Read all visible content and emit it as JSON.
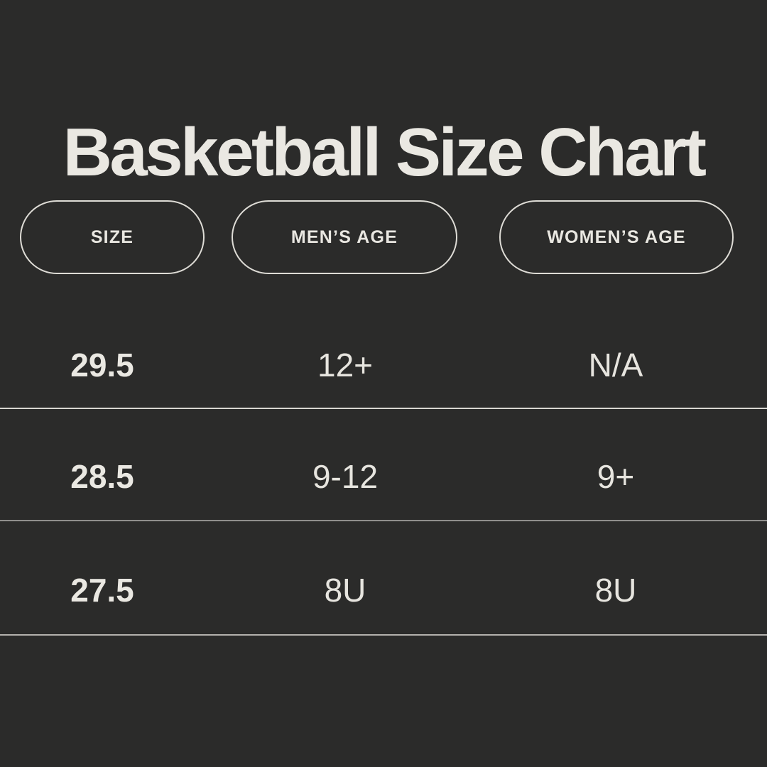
{
  "page": {
    "background_color": "#2b2b2a",
    "text_color": "#eae8e2",
    "pill_border_color": "#dedcd6"
  },
  "title": "Basketball Size Chart",
  "table": {
    "columns": [
      {
        "id": "size",
        "label": "SIZE"
      },
      {
        "id": "mens_age",
        "label": "MEN’S AGE"
      },
      {
        "id": "womens_age",
        "label": "WOMEN’S AGE"
      }
    ],
    "rows": [
      {
        "size": "29.5",
        "mens_age": "12+",
        "womens_age": "N/A"
      },
      {
        "size": "28.5",
        "mens_age": "9-12",
        "womens_age": "9+"
      },
      {
        "size": "27.5",
        "mens_age": "8U",
        "womens_age": "8U"
      }
    ],
    "divider_colors": [
      "#d8d6d1",
      "#908f8c",
      "#b4b2ae"
    ]
  },
  "chart_data": {
    "type": "table",
    "title": "Basketball Size Chart",
    "categories": [
      "SIZE",
      "MEN’S AGE",
      "WOMEN’S AGE"
    ],
    "series": [
      {
        "name": "29.5",
        "values": [
          "12+",
          "N/A"
        ]
      },
      {
        "name": "28.5",
        "values": [
          "9-12",
          "9+"
        ]
      },
      {
        "name": "27.5",
        "values": [
          "8U",
          "8U"
        ]
      }
    ]
  }
}
